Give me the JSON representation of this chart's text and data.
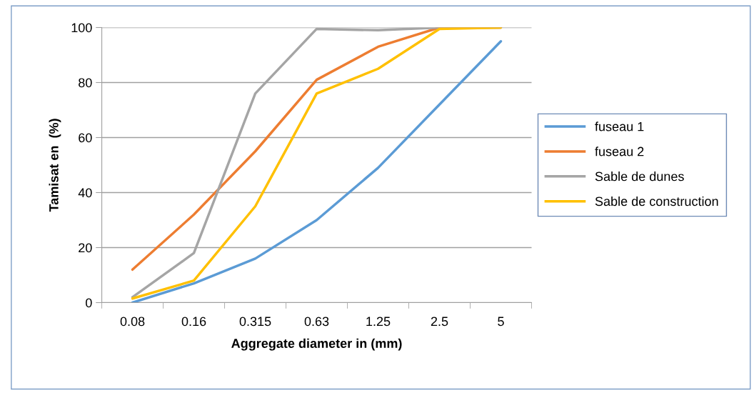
{
  "chart_data": {
    "type": "line",
    "xlabel": "Aggregate diameter in (mm)",
    "ylabel": "Tamisat en  (%)",
    "categories": [
      "0.08",
      "0.16",
      "0.315",
      "0.63",
      "1.25",
      "2.5",
      "5"
    ],
    "series": [
      {
        "name": "fuseau 1",
        "color": "#5b9bd5",
        "values": [
          0,
          7,
          16,
          30,
          49,
          72,
          95
        ]
      },
      {
        "name": "fuseau 2",
        "color": "#ed7d31",
        "values": [
          12,
          32,
          55,
          81,
          93,
          100,
          100
        ]
      },
      {
        "name": "Sable de dunes",
        "color": "#a5a5a5",
        "values": [
          2,
          18,
          76,
          99.5,
          99,
          100,
          100
        ]
      },
      {
        "name": "Sable de construction",
        "color": "#ffc000",
        "values": [
          1.5,
          8,
          35,
          76,
          85,
          99.5,
          100
        ]
      }
    ],
    "ylim": [
      0,
      100
    ],
    "yticks": [
      0,
      20,
      40,
      60,
      80,
      100
    ],
    "grid": "y",
    "legend": "right",
    "marker": "none",
    "line_style": "solid"
  }
}
